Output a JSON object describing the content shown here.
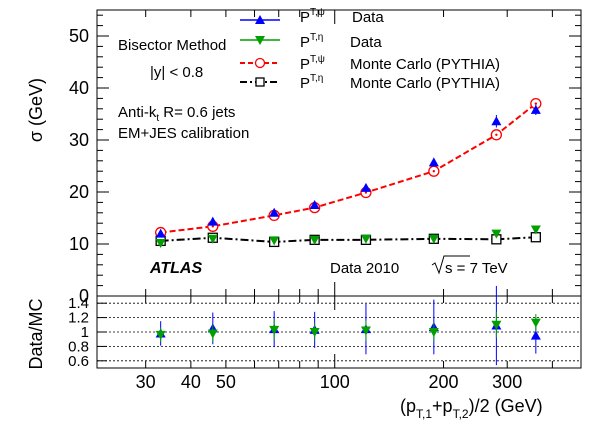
{
  "chart_data": [
    {
      "type": "scatter",
      "panel": "main",
      "xscale": "log",
      "xlim": [
        22,
        480
      ],
      "ylim": [
        0,
        55
      ],
      "ylabel": "σ (GeV)",
      "yticks": [
        0,
        10,
        20,
        30,
        40,
        50
      ],
      "annotations": {
        "method": "Bisector Method",
        "rapidity": "|y| < 0.8",
        "jets_main": "Anti-k",
        "jets_sub": "t",
        "jets_rest": " R= 0.6 jets",
        "calibration": "EM+JES calibration",
        "atlas": "ATLAS",
        "data_year": "Data 2010",
        "sqrt_label": "s = 7 TeV"
      },
      "legend": [
        {
          "name_main": "P",
          "name_sub": "T,ψ",
          "label": "Data",
          "color": "#0000ff",
          "marker": "triangle-up"
        },
        {
          "name_main": "P",
          "name_sub": "T,η",
          "label": "Data",
          "color": "#00a000",
          "marker": "triangle-down"
        },
        {
          "name_main": "P",
          "name_sub": "T,ψ",
          "label": "Monte Carlo (PYTHIA)",
          "color": "#ff0000",
          "marker": "open-circle",
          "line": "dashed"
        },
        {
          "name_main": "P",
          "name_sub": "T,η",
          "label": "Monte Carlo (PYTHIA)",
          "color": "#000000",
          "marker": "open-square",
          "line": "dashdot"
        }
      ],
      "series": [
        {
          "name": "P_T,ψ Data",
          "color": "#0000ff",
          "marker": "triangle-up",
          "x": [
            33,
            46,
            68,
            88,
            122,
            188,
            280,
            360
          ],
          "y": [
            12.0,
            14.3,
            16.0,
            17.5,
            20.8,
            25.7,
            33.6,
            35.8
          ],
          "yerr": [
            0.5,
            0.5,
            0.5,
            0.5,
            0.6,
            0.7,
            1.2,
            1.0
          ]
        },
        {
          "name": "P_T,η Data",
          "color": "#00a000",
          "marker": "triangle-down",
          "x": [
            33,
            46,
            68,
            88,
            122,
            188,
            280,
            360
          ],
          "y": [
            10.2,
            11.0,
            10.7,
            10.8,
            11.0,
            11.0,
            12.0,
            12.8
          ],
          "yerr": [
            0.4,
            0.4,
            0.4,
            0.4,
            0.4,
            0.4,
            0.6,
            0.6
          ]
        },
        {
          "name": "P_T,ψ Monte Carlo (PYTHIA)",
          "color": "#ff0000",
          "marker": "open-circle",
          "x": [
            33,
            46,
            68,
            88,
            122,
            188,
            280,
            360
          ],
          "y": [
            12.2,
            13.4,
            15.5,
            17.0,
            19.9,
            24.0,
            31.0,
            37.0
          ]
        },
        {
          "name": "P_T,η Monte Carlo (PYTHIA)",
          "color": "#000000",
          "marker": "open-square",
          "x": [
            33,
            46,
            68,
            88,
            122,
            188,
            280,
            360
          ],
          "y": [
            10.6,
            11.2,
            10.4,
            10.8,
            10.8,
            11.0,
            10.9,
            11.3
          ]
        }
      ]
    },
    {
      "type": "scatter",
      "panel": "ratio",
      "xscale": "log",
      "xlim": [
        22,
        480
      ],
      "ylim": [
        0.5,
        1.5
      ],
      "ylabel": "Data/MC",
      "xlabel_main": "(p",
      "xlabel_sub1": "T,1",
      "xlabel_mid": "+p",
      "xlabel_sub2": "T,2",
      "xlabel_end": ")/2 (GeV)",
      "yticks": [
        0.6,
        0.8,
        1,
        1.2,
        1.4
      ],
      "ytick_labels": [
        "0.6",
        "0.8",
        "1",
        "1.2",
        "1.4"
      ],
      "xticks": [
        30,
        40,
        50,
        100,
        200,
        300
      ],
      "xtick_labels": [
        "30",
        "40",
        "50",
        "100",
        "200",
        "300"
      ],
      "reference_lines": [
        0.6,
        0.8,
        1.0,
        1.2,
        1.4
      ],
      "series": [
        {
          "name": "P_T,ψ ratio",
          "color": "#0000ff",
          "marker": "triangle-up",
          "x": [
            33,
            46,
            68,
            88,
            122,
            188,
            280,
            360
          ],
          "y": [
            0.98,
            1.05,
            1.04,
            1.03,
            1.04,
            1.07,
            1.09,
            0.95
          ],
          "yerr": [
            0.17,
            0.22,
            0.25,
            0.25,
            0.35,
            0.38,
            0.55,
            0.25
          ]
        },
        {
          "name": "P_T,η ratio",
          "color": "#00a000",
          "marker": "triangle-down",
          "x": [
            33,
            46,
            68,
            88,
            122,
            188,
            280,
            360
          ],
          "y": [
            0.96,
            0.98,
            1.03,
            1.0,
            1.02,
            1.0,
            1.1,
            1.13
          ],
          "yerr": [
            0.1,
            0.12,
            0.14,
            0.12,
            0.14,
            0.13,
            0.18,
            0.12
          ]
        }
      ]
    }
  ]
}
